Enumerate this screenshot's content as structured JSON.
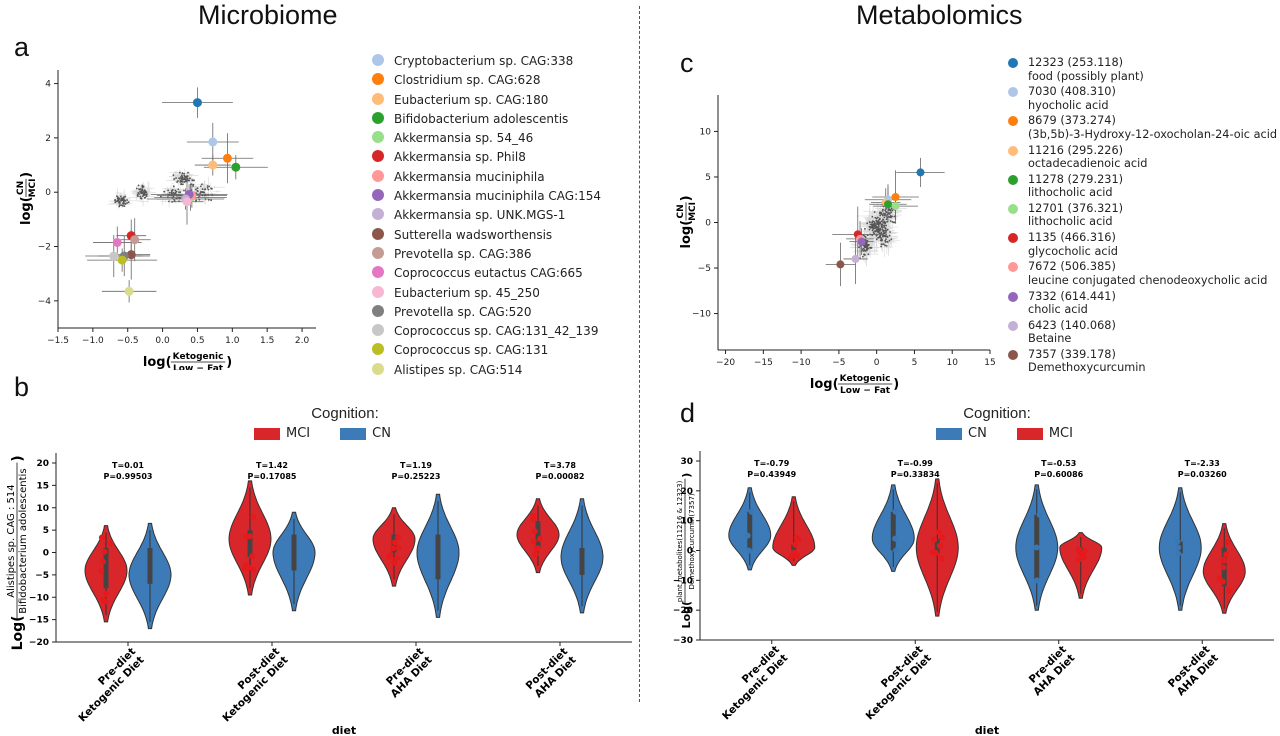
{
  "titles": {
    "left": "Microbiome",
    "right": "Metabolomics"
  },
  "panels": {
    "a": "a",
    "b": "b",
    "c": "c",
    "d": "d"
  },
  "cognition": {
    "title": "Cognition:",
    "mci": "MCI",
    "cn": "CN"
  },
  "colors": {
    "mci": "#d62728",
    "cn": "#3a78b5",
    "violin_mci": "#d9262b",
    "violin_cn": "#3d7ab8"
  },
  "chart_data": [
    {
      "panel": "a",
      "type": "scatter",
      "xlabel": "log(Ketogenic / Low − Fat)",
      "ylabel": "log(CN / MCI)",
      "xlim": [
        -1.5,
        2.2
      ],
      "ylim": [
        -5,
        4.5
      ],
      "xticks": [
        "−1.5",
        "−1.0",
        "−0.5",
        "0.0",
        "0.5",
        "1.0",
        "1.5",
        "2.0"
      ],
      "yticks": [
        "−4",
        "−2",
        "0",
        "2",
        "4"
      ],
      "legend_placement": "right",
      "series": [
        {
          "name": "Cryptobacterium sp. CAG:338",
          "color": "#aec7e8",
          "x": 0.72,
          "y": 1.85
        },
        {
          "name": "Clostridium sp. CAG:628",
          "color": "#ff7f0e",
          "x": 0.93,
          "y": 1.25
        },
        {
          "name": "Eubacterium sp. CAG:180",
          "color": "#ffbb78",
          "x": 0.72,
          "y": 1.0
        },
        {
          "name": "Bifidobacterium adolescentis",
          "color": "#2ca02c",
          "x": 1.05,
          "y": 0.92
        },
        {
          "name": "Akkermansia sp. 54_46",
          "color": "#98df8a",
          "x": 0.4,
          "y": -0.2
        },
        {
          "name": "Akkermansia sp. Phil8",
          "color": "#d62728",
          "x": -0.45,
          "y": -1.6
        },
        {
          "name": "Akkermansia muciniphila",
          "color": "#ff9896",
          "x": 0.42,
          "y": -0.12
        },
        {
          "name": "Akkermansia muciniphila CAG:154",
          "color": "#9467bd",
          "x": 0.38,
          "y": -0.08
        },
        {
          "name": "Akkermansia sp. UNK.MGS-1",
          "color": "#c5b0d5",
          "x": 0.33,
          "y": -0.25
        },
        {
          "name": "Sutterella wadsworthensis",
          "color": "#8c564b",
          "x": -0.45,
          "y": -2.3
        },
        {
          "name": "Prevotella sp. CAG:386",
          "color": "#c49c94",
          "x": -0.4,
          "y": -1.75
        },
        {
          "name": "Coprococcus eutactus CAG:665",
          "color": "#e377c2",
          "x": -0.65,
          "y": -1.85
        },
        {
          "name": "Eubacterium sp. 45_250",
          "color": "#f7b6d2",
          "x": 0.35,
          "y": -0.35
        },
        {
          "name": "Prevotella sp. CAG:520",
          "color": "#7f7f7f",
          "x": -0.55,
          "y": -2.35
        },
        {
          "name": "Coprococcus sp. CAG:131_42_139",
          "color": "#c7c7c7",
          "x": -0.7,
          "y": -2.35
        },
        {
          "name": "Coprococcus sp. CAG:131",
          "color": "#bcbd22",
          "x": -0.58,
          "y": -2.5
        },
        {
          "name": "Alistipes sp. CAG:514",
          "color": "#dbdb8d",
          "x": -0.48,
          "y": -3.65
        },
        {
          "name": "",
          "color": "#1f77b4",
          "x": 0.5,
          "y": 3.3
        }
      ]
    },
    {
      "panel": "b",
      "type": "violin",
      "xlabel": "diet",
      "ylabel": "Log(Alistipes sp. CAG : 514 / Bifidobacterium adolescentis)",
      "ylim": [
        -20,
        20
      ],
      "yticks": [
        "−20",
        "−15",
        "−10",
        "−5",
        "0",
        "5",
        "10",
        "15",
        "20"
      ],
      "categories": [
        "Pre-diet\nKetogenic Diet",
        "Post-diet\nKetogenic Diet",
        "Pre-diet\nAHA Diet",
        "Post-diet\nAHA Diet"
      ],
      "stats": [
        {
          "t": "T=0.01",
          "p": "P=0.99503"
        },
        {
          "t": "T=1.42",
          "p": "P=0.17085"
        },
        {
          "t": "T=1.19",
          "p": "P=0.25223"
        },
        {
          "t": "T=3.78",
          "p": "P=0.00082"
        }
      ],
      "violins": [
        {
          "group": "MCI",
          "min": -15.5,
          "max": 6,
          "mode": -4,
          "q1": -8,
          "q3": 1
        },
        {
          "group": "CN",
          "min": -17,
          "max": 6.5,
          "mode": -5,
          "q1": -7,
          "q3": 1
        },
        {
          "group": "MCI",
          "min": -9.5,
          "max": 16,
          "mode": 3,
          "q1": -1,
          "q3": 5
        },
        {
          "group": "CN",
          "min": -13,
          "max": 9,
          "mode": 0,
          "q1": -4,
          "q3": 4
        },
        {
          "group": "MCI",
          "min": -7.5,
          "max": 10,
          "mode": 3,
          "q1": 0,
          "q3": 4
        },
        {
          "group": "CN",
          "min": -14.5,
          "max": 13,
          "mode": 0,
          "q1": -6,
          "q3": 4
        },
        {
          "group": "MCI",
          "min": -4.5,
          "max": 12,
          "mode": 4,
          "q1": 1,
          "q3": 7
        },
        {
          "group": "CN",
          "min": -13.5,
          "max": 12,
          "mode": -1,
          "q1": -5,
          "q3": 1
        }
      ]
    },
    {
      "panel": "c",
      "type": "scatter",
      "xlabel": "log(Ketogenic / Low − Fat)",
      "ylabel": "log(CN / MCI)",
      "xlim": [
        -21,
        15
      ],
      "ylim": [
        -14,
        14
      ],
      "xticks": [
        "−20",
        "−15",
        "−10",
        "−5",
        "0",
        "5",
        "10",
        "15"
      ],
      "yticks": [
        "−10",
        "−5",
        "0",
        "5",
        "10"
      ],
      "legend_placement": "right",
      "series": [
        {
          "name": "12323 (253.118)\nfood (possibly plant)",
          "color": "#1f77b4",
          "x": 5.8,
          "y": 5.5
        },
        {
          "name": "7030 (408.310)\nhyocholic acid",
          "color": "#aec7e8",
          "x": 1.5,
          "y": 2.5
        },
        {
          "name": "8679 (373.274)\n(3b,5b)-3-Hydroxy-12-oxocholan-24-oic acid",
          "color": "#ff7f0e",
          "x": 2.5,
          "y": 2.8
        },
        {
          "name": "11216 (295.226)\noctadecadienoic acid",
          "color": "#ffbb78",
          "x": 1.2,
          "y": 2.2
        },
        {
          "name": "11278 (279.231)\nlithocholic acid",
          "color": "#2ca02c",
          "x": 1.5,
          "y": 2.0
        },
        {
          "name": "12701 (376.321)\nlithocholic acid",
          "color": "#98df8a",
          "x": 2.5,
          "y": 1.8
        },
        {
          "name": "1135 (466.316)\nglycocholic acid",
          "color": "#d62728",
          "x": -2.5,
          "y": -1.3
        },
        {
          "name": "7672 (506.385)\nleucine conjugated chenodeoxycholic acid",
          "color": "#ff9896",
          "x": -2.2,
          "y": -1.8
        },
        {
          "name": "7332 (614.441)\ncholic acid",
          "color": "#9467bd",
          "x": -2.0,
          "y": -2.1
        },
        {
          "name": "6423 (140.068)\nBetaine",
          "color": "#c5b0d5",
          "x": -2.8,
          "y": -4.0
        },
        {
          "name": "7357 (339.178)\nDemethoxycurcumin",
          "color": "#8c564b",
          "x": -4.8,
          "y": -4.6
        }
      ]
    },
    {
      "panel": "d",
      "type": "violin",
      "xlabel": "diet",
      "ylabel": "Log(plant metabolites(11216 & 12323) / Demethoxycurcumin(7357))",
      "ylim": [
        -30,
        30
      ],
      "yticks": [
        "−30",
        "−20",
        "−10",
        "0",
        "10",
        "20",
        "30"
      ],
      "categories": [
        "Pre-diet\nKetogenic Diet",
        "Post-diet\nKetogenic Diet",
        "Pre-diet\nAHA Diet",
        "Post-diet\nAHA Diet"
      ],
      "stats": [
        {
          "t": "T=-0.79",
          "p": "P=0.43949"
        },
        {
          "t": "T=-0.99",
          "p": "P=0.33834"
        },
        {
          "t": "T=-0.53",
          "p": "P=0.60086"
        },
        {
          "t": "T=-2.33",
          "p": "P=0.03260"
        }
      ],
      "violins": [
        {
          "group": "CN",
          "min": -6.5,
          "max": 21,
          "mode": 5,
          "q1": 0,
          "q3": 13
        },
        {
          "group": "MCI",
          "min": -5,
          "max": 18,
          "mode": 1,
          "q1": 0,
          "q3": 2
        },
        {
          "group": "CN",
          "min": -7,
          "max": 22,
          "mode": 4,
          "q1": 0,
          "q3": 13
        },
        {
          "group": "MCI",
          "min": -22,
          "max": 24,
          "mode": 1,
          "q1": -1,
          "q3": 4
        },
        {
          "group": "CN",
          "min": -20,
          "max": 22,
          "mode": 1,
          "q1": -10,
          "q3": 12
        },
        {
          "group": "MCI",
          "min": -16,
          "max": 6,
          "mode": 1,
          "q1": 0,
          "q3": 1
        },
        {
          "group": "CN",
          "min": -20,
          "max": 21,
          "mode": 1,
          "q1": -1,
          "q3": 3
        },
        {
          "group": "MCI",
          "min": -21,
          "max": 9,
          "mode": -7,
          "q1": -12,
          "q3": 1
        }
      ]
    }
  ]
}
